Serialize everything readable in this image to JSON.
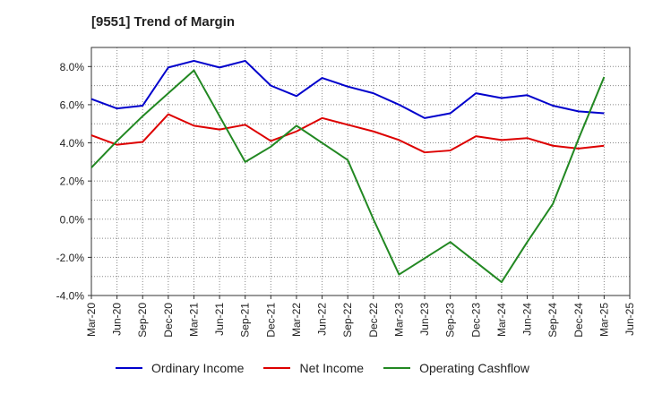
{
  "chart_data": {
    "type": "line",
    "title": "[9551]  Trend of Margin",
    "xlabel": "",
    "ylabel": "",
    "categories": [
      "Mar-20",
      "Jun-20",
      "Sep-20",
      "Dec-20",
      "Mar-21",
      "Jun-21",
      "Sep-21",
      "Dec-21",
      "Mar-22",
      "Jun-22",
      "Sep-22",
      "Dec-22",
      "Mar-23",
      "Jun-23",
      "Sep-23",
      "Dec-23",
      "Mar-24",
      "Jun-24",
      "Sep-24",
      "Dec-24",
      "Mar-25",
      "Jun-25"
    ],
    "ylim": [
      -4.0,
      9.0
    ],
    "yticks": [
      -4.0,
      -2.0,
      0.0,
      2.0,
      4.0,
      6.0,
      8.0
    ],
    "ytick_labels": [
      "-4.0%",
      "-2.0%",
      "0.0%",
      "2.0%",
      "4.0%",
      "6.0%",
      "8.0%"
    ],
    "grid": true,
    "legend_position": "bottom",
    "series": [
      {
        "name": "Ordinary Income",
        "color": "#0000cc",
        "values": [
          6.3,
          5.8,
          5.95,
          7.95,
          8.3,
          7.95,
          8.3,
          7.0,
          6.45,
          7.4,
          6.95,
          6.6,
          6.0,
          5.3,
          5.55,
          6.6,
          6.35,
          6.5,
          5.95,
          5.65,
          5.55,
          null
        ]
      },
      {
        "name": "Net Income",
        "color": "#dd0000",
        "values": [
          4.4,
          3.9,
          4.05,
          5.5,
          4.9,
          4.7,
          4.95,
          4.1,
          4.6,
          5.3,
          4.95,
          4.6,
          4.15,
          3.5,
          3.6,
          4.35,
          4.15,
          4.25,
          3.85,
          3.7,
          3.85,
          null
        ]
      },
      {
        "name": "Operating Cashflow",
        "color": "#228822",
        "values": [
          2.7,
          4.1,
          5.4,
          6.6,
          7.8,
          5.4,
          3.0,
          3.8,
          4.9,
          4.0,
          3.1,
          0.0,
          -2.9,
          -2.05,
          -1.2,
          -2.25,
          -3.3,
          -1.2,
          0.8,
          4.2,
          7.45,
          null
        ]
      }
    ]
  }
}
